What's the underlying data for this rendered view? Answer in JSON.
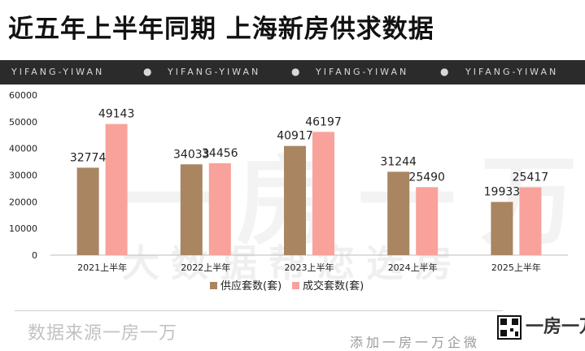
{
  "header": {
    "title": "近五年上半年同期 上海新房供求数据"
  },
  "banner": {
    "items": [
      "YIFANG-YIWAN",
      "YIFANG-YIWAN",
      "YIFANG-YIWAN",
      "YIFANG-YIWAN"
    ],
    "separator": "●"
  },
  "chart_data": {
    "type": "bar",
    "categories": [
      "2021上半年",
      "2022上半年",
      "2023上半年",
      "2024上半年",
      "2025上半年"
    ],
    "series": [
      {
        "name": "供应套数(套)",
        "values": [
          32774,
          34033,
          40917,
          31244,
          19933
        ],
        "color": "#a98561"
      },
      {
        "name": "成交套数(套)",
        "values": [
          49143,
          34456,
          46197,
          25490,
          25417
        ],
        "color": "#f8a29b"
      }
    ],
    "yticks": [
      0,
      10000,
      20000,
      30000,
      40000,
      50000,
      60000
    ],
    "ylim": [
      0,
      60000
    ],
    "legend_position": "bottom",
    "grid": false
  },
  "watermark": {
    "large": "一房一万",
    "small": "大数据帮您选房"
  },
  "footer": {
    "source": "数据来源一房一万",
    "cut_text": "添加一房一万企微",
    "qr_icon": "qr-code-icon",
    "logo_text": "一房一万"
  }
}
